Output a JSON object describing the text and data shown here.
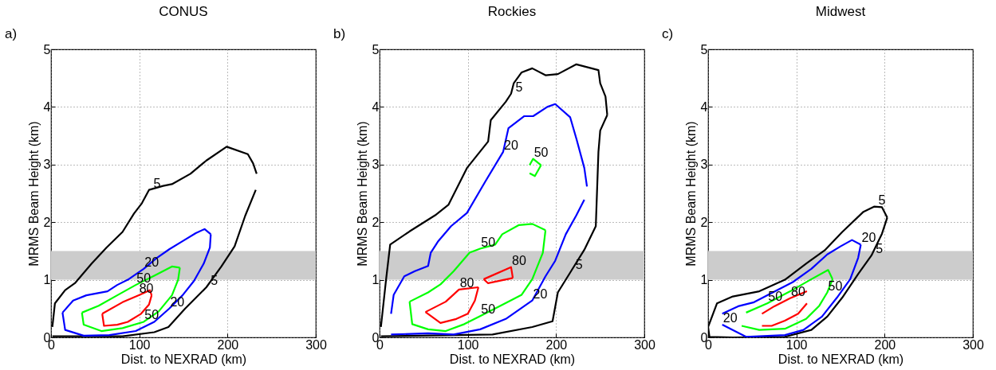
{
  "chart_data": [
    {
      "type": "line",
      "title": "CONUS",
      "annotations": [
        "a)"
      ],
      "xlabel": "Dist. to NEXRAD (km)",
      "ylabel": "MRMS Beam Height (km)",
      "xlim": [
        0,
        300
      ],
      "xticks": [
        0,
        100,
        200,
        300
      ],
      "ylim": [
        0,
        5
      ],
      "yticks": [
        0,
        1,
        2,
        3,
        4,
        5
      ],
      "grid": true,
      "bands": [
        {
          "axis": "y",
          "from": 1,
          "to": 1.5,
          "color": "#cccccc"
        }
      ],
      "series": [
        {
          "name": "5",
          "color": "#000000",
          "x": [
            1.5,
            4.4,
            16,
            27,
            46,
            63,
            81,
            94,
            103,
            111,
            127,
            137,
            158,
            176,
            199,
            223,
            229,
            233
          ],
          "values": [
            0.18,
            0.59,
            0.82,
            0.94,
            1.28,
            1.56,
            1.83,
            2.15,
            2.33,
            2.56,
            2.63,
            2.66,
            2.84,
            3.07,
            3.31,
            3.18,
            3.02,
            2.84
          ]
        },
        {
          "name": "5",
          "color": "#000000",
          "x": [
            1.5,
            81,
            117,
            133,
            152,
            176,
            193,
            208,
            220,
            232
          ],
          "values": [
            0.02,
            0.02,
            0.09,
            0.18,
            0.5,
            0.87,
            1.23,
            1.58,
            2.11,
            2.56
          ]
        },
        {
          "name": "20",
          "color": "#0000ff",
          "x": [
            13,
            25,
            40,
            64,
            75,
            87,
            105,
            119,
            134,
            149,
            164,
            174,
            181
          ],
          "values": [
            0.43,
            0.64,
            0.73,
            0.8,
            0.91,
            1.0,
            1.19,
            1.37,
            1.53,
            1.67,
            1.81,
            1.88,
            1.79
          ]
        },
        {
          "name": "20",
          "color": "#0000ff",
          "x": [
            13,
            16,
            37,
            66,
            96,
            117,
            134,
            149,
            162,
            173,
            180,
            181
          ],
          "values": [
            0.43,
            0.13,
            0.03,
            0.04,
            0.11,
            0.27,
            0.5,
            0.73,
            0.98,
            1.28,
            1.56,
            1.79
          ]
        },
        {
          "name": "50",
          "color": "#00ff00",
          "x": [
            35,
            54,
            75,
            96,
            117,
            137,
            146
          ],
          "values": [
            0.43,
            0.55,
            0.73,
            0.91,
            1.07,
            1.23,
            1.21
          ]
        },
        {
          "name": "50",
          "color": "#00ff00",
          "x": [
            35,
            37,
            57,
            81,
            105,
            122,
            137,
            144,
            146
          ],
          "values": [
            0.43,
            0.22,
            0.11,
            0.16,
            0.27,
            0.45,
            0.73,
            1.0,
            1.21
          ]
        },
        {
          "name": "80",
          "color": "#ff0000",
          "x": [
            58,
            81,
            99,
            112,
            114
          ],
          "values": [
            0.41,
            0.61,
            0.73,
            0.82,
            0.73
          ]
        },
        {
          "color": "#ff0000",
          "x": [
            58,
            60,
            75,
            87,
            102,
            111,
            114
          ],
          "values": [
            0.41,
            0.2,
            0.22,
            0.27,
            0.41,
            0.57,
            0.73
          ]
        }
      ]
    },
    {
      "type": "line",
      "title": "Rockies",
      "annotations": [
        "b)"
      ],
      "xlabel": "Dist. to NEXRAD (km)",
      "ylabel": "MRMS Beam Height (km)",
      "xlim": [
        0,
        300
      ],
      "xticks": [
        0,
        100,
        200,
        300
      ],
      "ylim": [
        0,
        5
      ],
      "yticks": [
        0,
        1,
        2,
        3,
        4,
        5
      ],
      "grid": true,
      "bands": [
        {
          "axis": "y",
          "from": 1,
          "to": 1.5,
          "color": "#cccccc"
        }
      ],
      "series": [
        {
          "name": "5",
          "color": "#000000",
          "x": [
            1.5,
            7.4,
            12,
            34,
            63,
            78,
            99,
            123,
            126,
            143,
            149,
            152,
            161,
            173,
            188,
            202,
            223,
            248,
            250,
            256,
            258
          ],
          "values": [
            0.18,
            1.01,
            1.61,
            1.84,
            2.12,
            2.3,
            2.94,
            3.4,
            3.77,
            4.09,
            4.23,
            4.41,
            4.6,
            4.67,
            4.55,
            4.57,
            4.74,
            4.64,
            4.41,
            4.18,
            3.86
          ]
        },
        {
          "name": "5",
          "color": "#000000",
          "x": [
            1.5,
            128,
            173,
            196,
            202,
            217,
            232,
            245,
            248,
            250,
            258
          ],
          "values": [
            0.02,
            0.05,
            0.18,
            0.28,
            0.78,
            1.15,
            1.52,
            1.93,
            3.22,
            3.59,
            3.86
          ]
        },
        {
          "name": "20",
          "color": "#0000ff",
          "x": [
            13,
            16,
            28,
            40,
            55,
            58,
            66,
            81,
            99,
            120,
            140,
            146,
            164,
            174,
            190,
            199,
            216,
            223,
            232,
            235
          ],
          "values": [
            0.41,
            0.74,
            1.06,
            1.15,
            1.24,
            1.47,
            1.66,
            1.93,
            2.16,
            2.71,
            3.22,
            3.63,
            3.84,
            3.84,
            4.0,
            4.05,
            3.82,
            3.45,
            2.94,
            2.62
          ]
        },
        {
          "name": "20",
          "color": "#0000ff",
          "x": [
            13,
            55,
            84,
            114,
            143,
            173,
            188,
            199,
            211,
            223,
            232
          ],
          "values": [
            0.05,
            0.07,
            0.05,
            0.14,
            0.32,
            0.64,
            1.06,
            1.33,
            1.79,
            2.12,
            2.39
          ]
        },
        {
          "name": "50",
          "color": "#00ff00",
          "x": [
            34,
            55,
            69,
            84,
            102,
            114,
            131,
            139,
            158,
            173,
            188
          ],
          "values": [
            0.62,
            0.78,
            0.92,
            1.15,
            1.47,
            1.54,
            1.61,
            1.79,
            1.95,
            1.97,
            1.86
          ]
        },
        {
          "name": "50",
          "color": "#00ff00",
          "x": [
            34,
            37,
            55,
            75,
            96,
            114,
            137,
            161,
            173,
            185,
            188
          ],
          "values": [
            0.62,
            0.23,
            0.14,
            0.11,
            0.23,
            0.37,
            0.55,
            0.74,
            1.01,
            1.47,
            1.86
          ]
        },
        {
          "name": "50",
          "color": "#00ff00",
          "x": [
            170,
            174,
            183
          ],
          "values": [
            2.99,
            3.1,
            2.99
          ]
        },
        {
          "color": "#00ff00",
          "x": [
            170,
            176,
            183
          ],
          "values": [
            2.85,
            2.8,
            2.99
          ]
        },
        {
          "name": "80",
          "color": "#ff0000",
          "x": [
            52,
            75,
            90,
            112
          ],
          "values": [
            0.44,
            0.62,
            0.83,
            0.87
          ]
        },
        {
          "color": "#ff0000",
          "x": [
            52,
            69,
            87,
            100,
            108,
            112
          ],
          "values": [
            0.44,
            0.25,
            0.32,
            0.41,
            0.64,
            0.87
          ]
        },
        {
          "name": "80",
          "color": "#ff0000",
          "x": [
            118,
            149,
            151
          ],
          "values": [
            1.01,
            1.22,
            1.03
          ]
        },
        {
          "color": "#ff0000",
          "x": [
            118,
            123,
            151
          ],
          "values": [
            1.01,
            0.94,
            1.03
          ]
        }
      ]
    },
    {
      "type": "line",
      "title": "Midwest",
      "annotations": [
        "c)"
      ],
      "xlabel": "Dist. to NEXRAD (km)",
      "ylabel": "MRMS Beam Height (km)",
      "xlim": [
        0,
        300
      ],
      "xticks": [
        0,
        100,
        200,
        300
      ],
      "ylim": [
        0,
        5
      ],
      "yticks": [
        0,
        1,
        2,
        3,
        4,
        5
      ],
      "grid": true,
      "bands": [
        {
          "axis": "y",
          "from": 1,
          "to": 1.5,
          "color": "#cccccc"
        }
      ],
      "series": [
        {
          "name": "5",
          "color": "#000000",
          "x": [
            0,
            10,
            28,
            58,
            87,
            111,
            132,
            152,
            176,
            188,
            197,
            203
          ],
          "values": [
            0.18,
            0.59,
            0.71,
            0.8,
            1.0,
            1.28,
            1.51,
            1.83,
            2.18,
            2.27,
            2.26,
            2.08
          ]
        },
        {
          "name": "5",
          "color": "#000000",
          "x": [
            0,
            1.5,
            28,
            87,
            117,
            135,
            152,
            170,
            185,
            197,
            203
          ],
          "values": [
            0.18,
            0.01,
            0,
            0.01,
            0.13,
            0.36,
            0.69,
            1.1,
            1.42,
            1.8,
            2.08
          ]
        },
        {
          "name": "20",
          "color": "#0000ff",
          "x": [
            16,
            34,
            52,
            72,
            96,
            117,
            135,
            150,
            163,
            173
          ],
          "values": [
            0.41,
            0.54,
            0.61,
            0.77,
            0.96,
            1.19,
            1.44,
            1.58,
            1.69,
            1.61
          ]
        },
        {
          "name": "20",
          "color": "#0000ff",
          "x": [
            16,
            43,
            87,
            108,
            129,
            146,
            161,
            170,
            173
          ],
          "values": [
            0.22,
            0.01,
            0.04,
            0.13,
            0.36,
            0.69,
            1.01,
            1.38,
            1.61
          ]
        },
        {
          "name": "50",
          "color": "#00ff00",
          "x": [
            43,
            67,
            93,
            117,
            136,
            141
          ],
          "values": [
            0.43,
            0.59,
            0.8,
            1.01,
            1.17,
            1.01
          ]
        },
        {
          "name": "50",
          "color": "#00ff00",
          "x": [
            38,
            58,
            87,
            111,
            126,
            135,
            141
          ],
          "values": [
            0.2,
            0.13,
            0.15,
            0.32,
            0.55,
            0.78,
            1.01
          ]
        },
        {
          "name": "80",
          "color": "#ff0000",
          "x": [
            61,
            75,
            93,
            112
          ],
          "values": [
            0.41,
            0.54,
            0.68,
            0.8
          ]
        },
        {
          "color": "#ff0000",
          "x": [
            61,
            72,
            87,
            102,
            112
          ],
          "values": [
            0.2,
            0.2,
            0.29,
            0.41,
            0.59
          ]
        }
      ]
    }
  ]
}
